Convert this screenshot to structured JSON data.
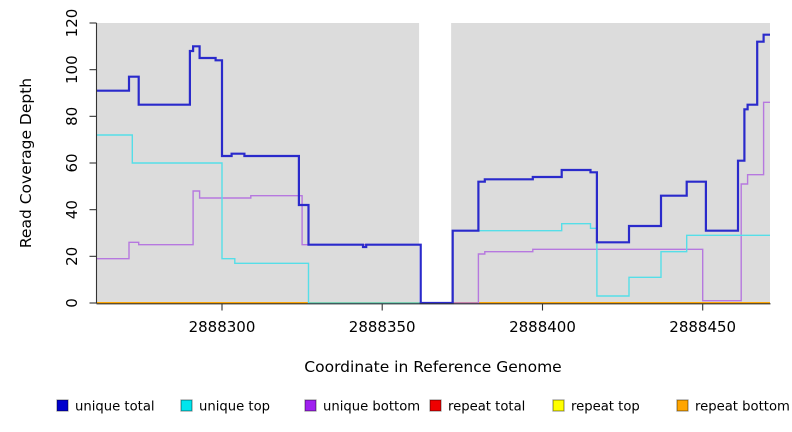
{
  "chart_data": {
    "type": "line",
    "subtype": "step-coverage-plot",
    "title": "",
    "xlabel": "Coordinate in Reference Genome",
    "ylabel": "Read Coverage Depth",
    "x_range": [
      2888261,
      2888471
    ],
    "y_range": [
      0,
      120
    ],
    "x_ticks": [
      2888300,
      2888350,
      2888400,
      2888450
    ],
    "y_ticks": [
      0,
      20,
      40,
      60,
      80,
      100,
      120
    ],
    "grid": false,
    "plot_background": "#DCDCDC",
    "page_background": "#FFFFFF",
    "gap_region": {
      "x_start": 2888361.5,
      "x_end": 2888371.5,
      "color": "#FFFFFF"
    },
    "legend_position": "bottom",
    "draw_order": [
      3,
      4,
      5,
      2,
      1,
      0
    ],
    "series": [
      {
        "name": "unique total",
        "color": "#2A2ACB",
        "swatch": "#0000CD",
        "width": 2.2,
        "steps": [
          [
            2888261,
            91
          ],
          [
            2888271,
            97
          ],
          [
            2888274,
            85
          ],
          [
            2888290,
            108
          ],
          [
            2888291,
            110
          ],
          [
            2888293,
            105
          ],
          [
            2888298,
            104
          ],
          [
            2888300,
            63
          ],
          [
            2888303,
            64
          ],
          [
            2888307,
            63
          ],
          [
            2888324,
            42
          ],
          [
            2888327,
            25
          ],
          [
            2888344,
            24
          ],
          [
            2888345,
            25
          ],
          [
            2888362,
            0
          ],
          [
            2888372,
            31
          ],
          [
            2888380,
            52
          ],
          [
            2888382,
            53
          ],
          [
            2888397,
            54
          ],
          [
            2888406,
            57
          ],
          [
            2888415,
            56
          ],
          [
            2888417,
            26
          ],
          [
            2888427,
            33
          ],
          [
            2888437,
            46
          ],
          [
            2888445,
            52
          ],
          [
            2888451,
            31
          ],
          [
            2888461,
            61
          ],
          [
            2888463,
            83
          ],
          [
            2888464,
            85
          ],
          [
            2888467,
            112
          ],
          [
            2888469,
            115
          ]
        ]
      },
      {
        "name": "unique top",
        "color": "#55DEE8",
        "swatch": "#00E5EE",
        "width": 1.4,
        "steps": [
          [
            2888261,
            72
          ],
          [
            2888272,
            60
          ],
          [
            2888300,
            19
          ],
          [
            2888304,
            17
          ],
          [
            2888327,
            0
          ],
          [
            2888372,
            31
          ],
          [
            2888406,
            34
          ],
          [
            2888415,
            32
          ],
          [
            2888417,
            3
          ],
          [
            2888427,
            11
          ],
          [
            2888437,
            22
          ],
          [
            2888445,
            29
          ]
        ]
      },
      {
        "name": "unique bottom",
        "color": "#B678DF",
        "swatch": "#A020F0",
        "width": 1.4,
        "steps": [
          [
            2888261,
            19
          ],
          [
            2888271,
            26
          ],
          [
            2888274,
            25
          ],
          [
            2888291,
            48
          ],
          [
            2888293,
            45
          ],
          [
            2888309,
            46
          ],
          [
            2888325,
            25
          ],
          [
            2888362,
            0
          ],
          [
            2888380,
            21
          ],
          [
            2888382,
            22
          ],
          [
            2888397,
            23
          ],
          [
            2888450,
            1
          ],
          [
            2888462,
            51
          ],
          [
            2888464,
            55
          ],
          [
            2888469,
            86
          ]
        ]
      },
      {
        "name": "repeat total",
        "color": "#CC0000",
        "swatch": "#EE0000",
        "width": 1.4,
        "steps": [
          [
            2888261,
            0
          ]
        ]
      },
      {
        "name": "repeat top",
        "color": "#EDED00",
        "swatch": "#FFFF00",
        "width": 1.4,
        "steps": [
          [
            2888261,
            0
          ]
        ]
      },
      {
        "name": "repeat bottom",
        "color": "#FFA500",
        "swatch": "#FFA500",
        "width": 1.8,
        "steps": [
          [
            2888261,
            0
          ]
        ]
      }
    ]
  }
}
